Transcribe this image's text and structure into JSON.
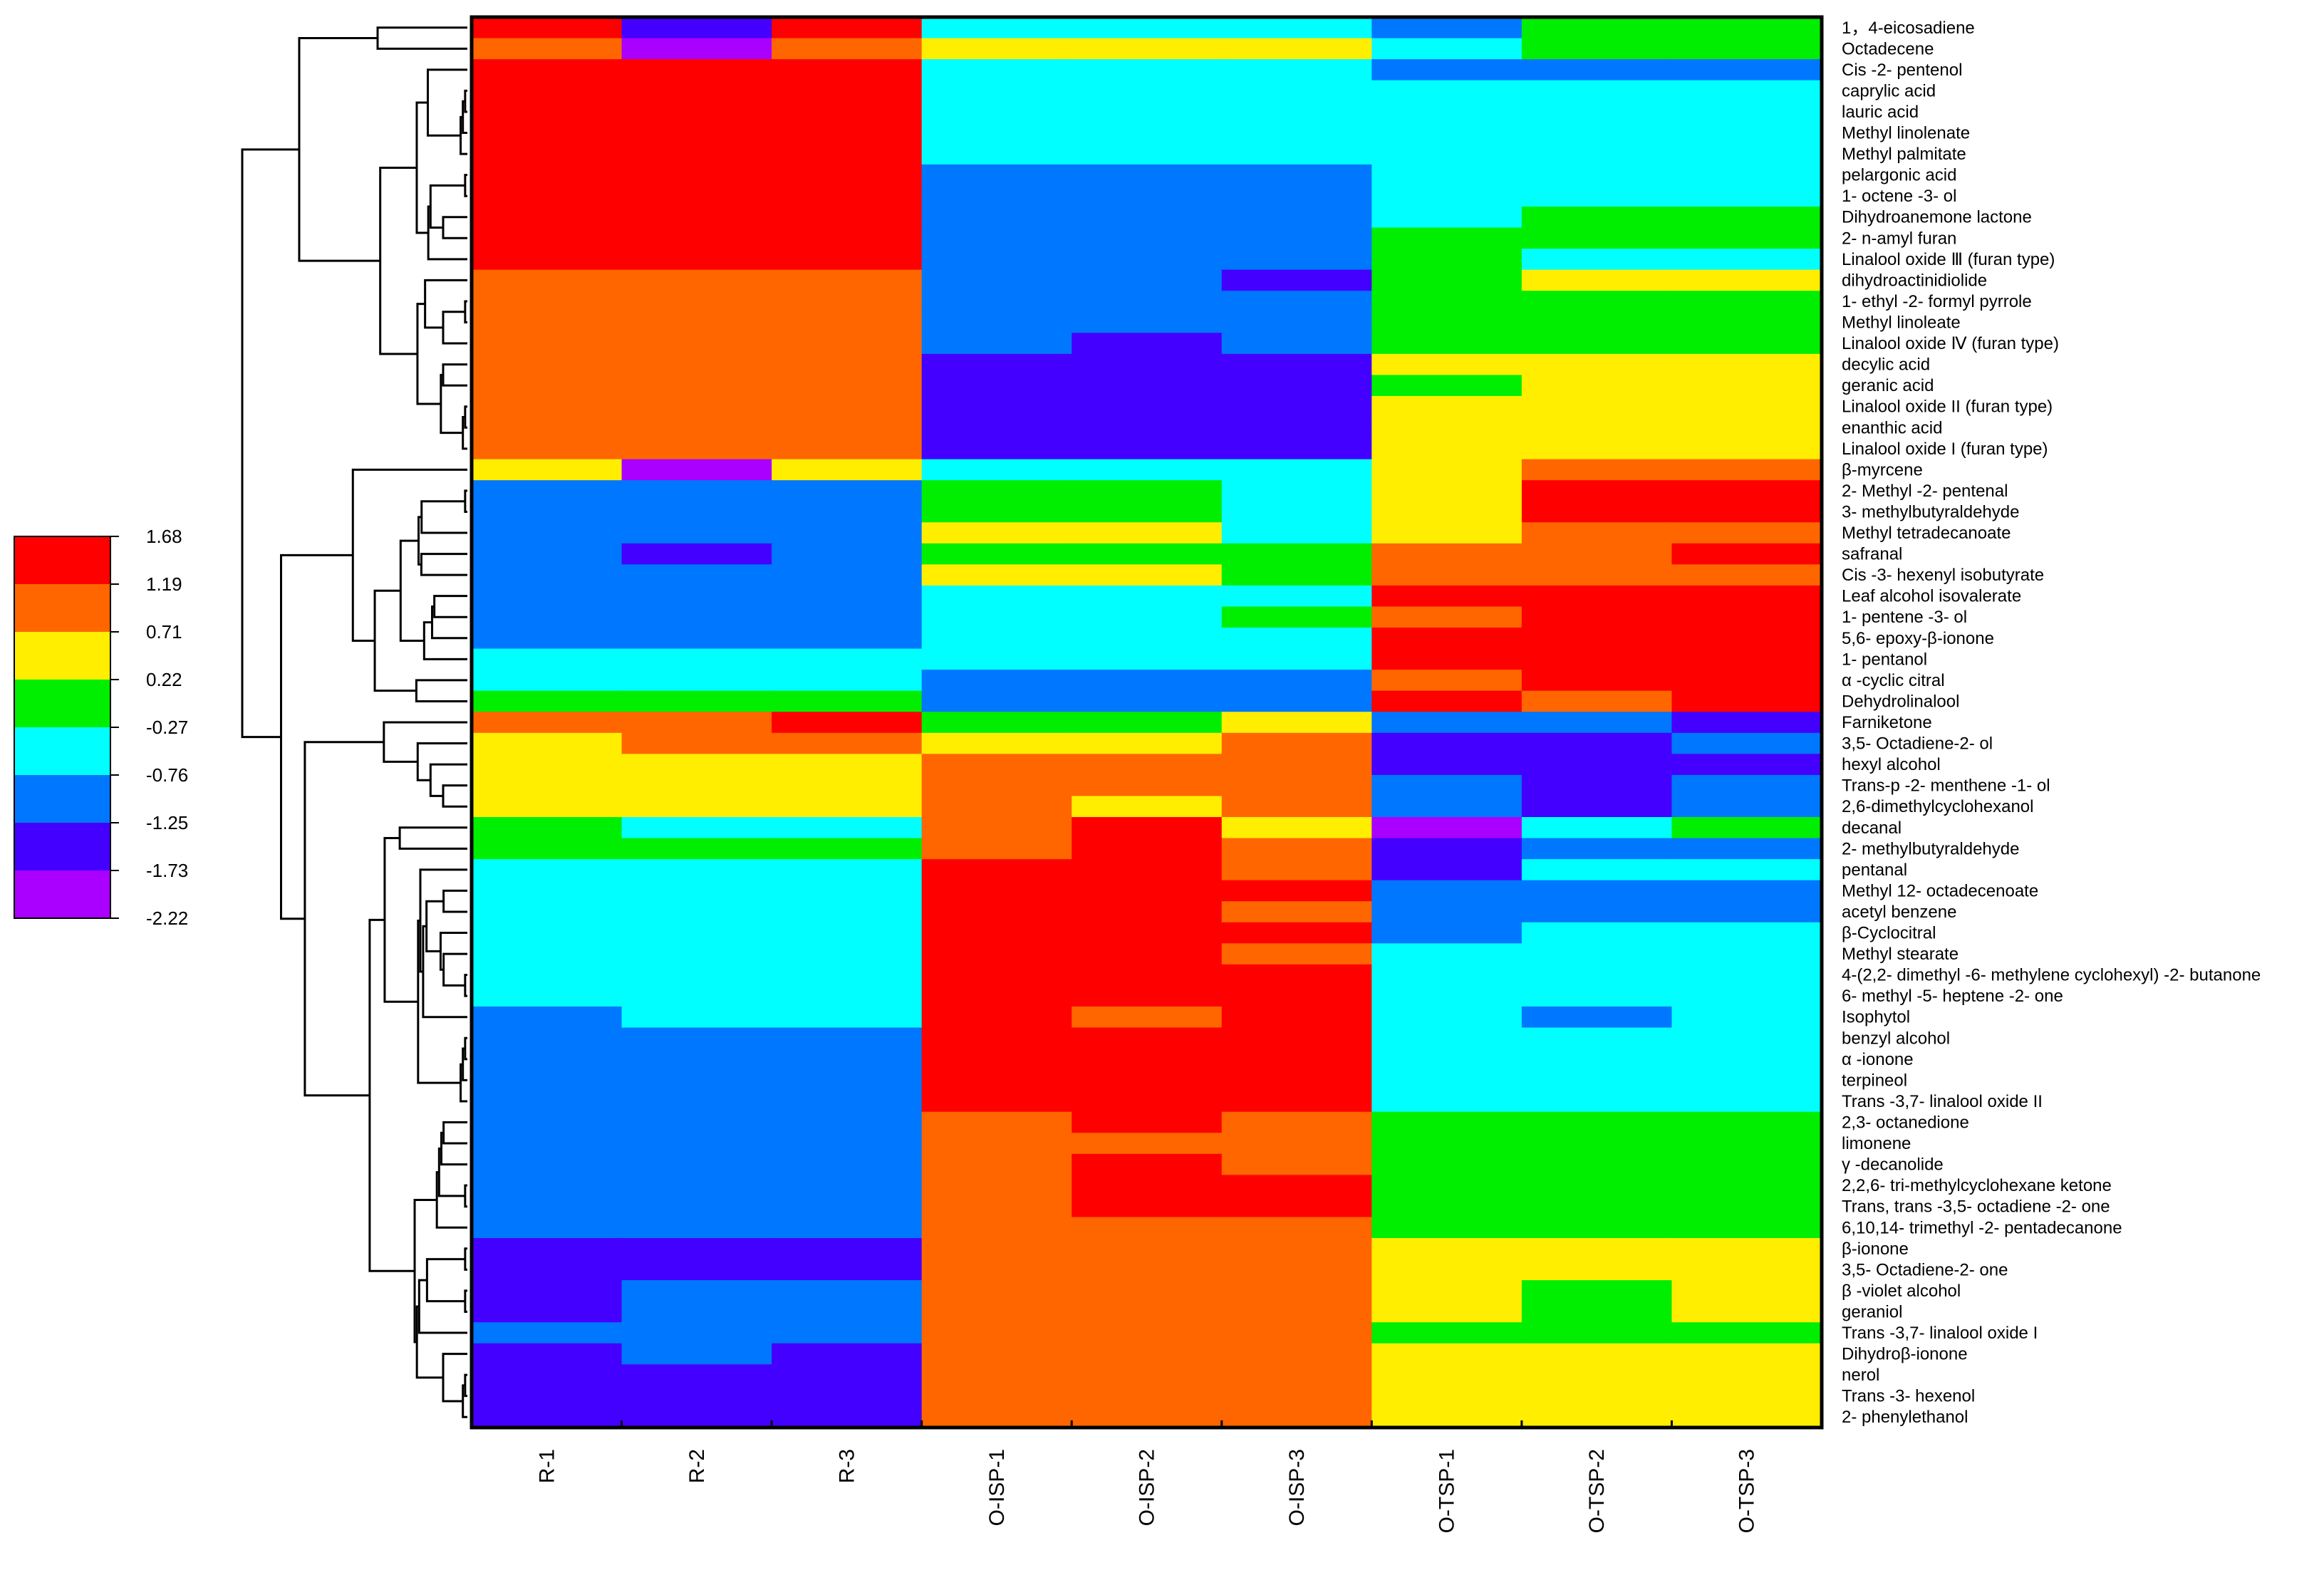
{
  "chart_data": {
    "type": "heatmap",
    "title": "",
    "xlabel": "",
    "ylabel": "",
    "columns": [
      "R-1",
      "R-2",
      "R-3",
      "O-ISP-1",
      "O-ISP-2",
      "O-ISP-3",
      "O-TSP-1",
      "O-TSP-2",
      "O-TSP-3"
    ],
    "rows": [
      "1，4-eicosadiene",
      "Octadecene",
      "Cis -2- pentenol",
      "caprylic acid",
      "lauric acid",
      "Methyl linolenate",
      "Methyl palmitate",
      "pelargonic acid",
      "1- octene -3- ol",
      "Dihydroanemone lactone",
      "2- n-amyl furan",
      "Linalool oxide Ⅲ (furan type)",
      "dihydroactinidiolide",
      "1- ethyl -2- formyl pyrrole",
      "Methyl linoleate",
      "Linalool oxide Ⅳ (furan type)",
      "decylic acid",
      "geranic acid",
      "Linalool oxide II (furan type)",
      "enanthic acid",
      "Linalool oxide I (furan type)",
      "β-myrcene",
      "2- Methyl -2- pentenal",
      "3- methylbutyraldehyde",
      "Methyl tetradecanoate",
      "safranal",
      "Cis -3- hexenyl isobutyrate",
      "Leaf alcohol isovalerate",
      "1- pentene -3- ol",
      "5,6- epoxy-β-ionone",
      "1- pentanol",
      "α -cyclic citral",
      "Dehydrolinalool",
      "Farniketone",
      "3,5- Octadiene-2- ol",
      "hexyl alcohol",
      "Trans-p -2- menthene -1- ol",
      "2,6-dimethylcyclohexanol",
      "decanal",
      "2- methylbutyraldehyde",
      "pentanal",
      "Methyl 12- octadecenoate",
      "acetyl benzene",
      "β-Cyclocitral",
      "Methyl stearate",
      "4-(2,2- dimethyl -6- methylene cyclohexyl) -2- butanone",
      "6- methyl -5- heptene -2- one",
      "Isophytol",
      "benzyl alcohol",
      "α -ionone",
      "terpineol",
      "Trans -3,7- linalool oxide II",
      "2,3- octanedione",
      "limonene",
      "γ -decanolide",
      "2,2,6- tri-methylcyclohexane ketone",
      "Trans, trans -3,5- octadiene -2- one",
      "6,10,14- trimethyl -2- pentadecanone",
      "β-ionone",
      "3,5- Octadiene-2- one",
      "β -violet alcohol",
      "geraniol",
      "Trans -3,7- linalool oxide I",
      "Dihydroβ-ionone",
      "nerol",
      "Trans -3- hexenol",
      "2- phenylethanol"
    ],
    "values": [
      [
        1.43,
        -1.49,
        1.43,
        -0.52,
        -0.52,
        -0.52,
        -1.0,
        -0.03,
        -0.03
      ],
      [
        0.95,
        -1.97,
        0.95,
        0.46,
        0.46,
        0.46,
        -0.52,
        -0.03,
        -0.03
      ],
      [
        1.43,
        1.43,
        1.43,
        -0.52,
        -0.52,
        -0.52,
        -1.0,
        -1.0,
        -1.0
      ],
      [
        1.43,
        1.43,
        1.43,
        -0.52,
        -0.52,
        -0.52,
        -0.52,
        -0.52,
        -0.52
      ],
      [
        1.43,
        1.43,
        1.43,
        -0.52,
        -0.52,
        -0.52,
        -0.52,
        -0.52,
        -0.52
      ],
      [
        1.43,
        1.43,
        1.43,
        -0.52,
        -0.52,
        -0.52,
        -0.52,
        -0.52,
        -0.52
      ],
      [
        1.43,
        1.43,
        1.43,
        -0.52,
        -0.52,
        -0.52,
        -0.52,
        -0.52,
        -0.52
      ],
      [
        1.43,
        1.43,
        1.43,
        -1.0,
        -1.0,
        -1.0,
        -0.52,
        -0.52,
        -0.52
      ],
      [
        1.43,
        1.43,
        1.43,
        -1.0,
        -1.0,
        -1.0,
        -0.52,
        -0.52,
        -0.52
      ],
      [
        1.43,
        1.43,
        1.43,
        -1.0,
        -1.0,
        -1.0,
        -0.52,
        -0.03,
        -0.03
      ],
      [
        1.43,
        1.43,
        1.43,
        -1.0,
        -1.0,
        -1.0,
        -0.03,
        -0.03,
        -0.03
      ],
      [
        1.43,
        1.43,
        1.43,
        -1.0,
        -1.0,
        -1.0,
        -0.03,
        -0.52,
        -0.52
      ],
      [
        0.95,
        0.95,
        0.95,
        -1.0,
        -1.0,
        -1.49,
        -0.03,
        0.46,
        0.46
      ],
      [
        0.95,
        0.95,
        0.95,
        -1.0,
        -1.0,
        -1.0,
        -0.03,
        -0.03,
        -0.03
      ],
      [
        0.95,
        0.95,
        0.95,
        -1.0,
        -1.0,
        -1.0,
        -0.03,
        -0.03,
        -0.03
      ],
      [
        0.95,
        0.95,
        0.95,
        -1.0,
        -1.49,
        -1.0,
        -0.03,
        -0.03,
        -0.03
      ],
      [
        0.95,
        0.95,
        0.95,
        -1.49,
        -1.49,
        -1.49,
        0.46,
        0.46,
        0.46
      ],
      [
        0.95,
        0.95,
        0.95,
        -1.49,
        -1.49,
        -1.49,
        -0.03,
        0.46,
        0.46
      ],
      [
        0.95,
        0.95,
        0.95,
        -1.49,
        -1.49,
        -1.49,
        0.46,
        0.46,
        0.46
      ],
      [
        0.95,
        0.95,
        0.95,
        -1.49,
        -1.49,
        -1.49,
        0.46,
        0.46,
        0.46
      ],
      [
        0.95,
        0.95,
        0.95,
        -1.49,
        -1.49,
        -1.49,
        0.46,
        0.46,
        0.46
      ],
      [
        0.46,
        -1.97,
        0.46,
        -0.52,
        -0.52,
        -0.52,
        0.46,
        0.95,
        0.95
      ],
      [
        -1.0,
        -1.0,
        -1.0,
        -0.03,
        -0.03,
        -0.52,
        0.46,
        1.43,
        1.43
      ],
      [
        -1.0,
        -1.0,
        -1.0,
        -0.03,
        -0.03,
        -0.52,
        0.46,
        1.43,
        1.43
      ],
      [
        -1.0,
        -1.0,
        -1.0,
        0.46,
        0.46,
        -0.52,
        0.46,
        0.95,
        0.95
      ],
      [
        -1.0,
        -1.49,
        -1.0,
        -0.03,
        -0.03,
        -0.03,
        0.95,
        0.95,
        1.43
      ],
      [
        -1.0,
        -1.0,
        -1.0,
        0.46,
        0.46,
        -0.03,
        0.95,
        0.95,
        0.95
      ],
      [
        -1.0,
        -1.0,
        -1.0,
        -0.52,
        -0.52,
        -0.52,
        1.43,
        1.43,
        1.43
      ],
      [
        -1.0,
        -1.0,
        -1.0,
        -0.52,
        -0.52,
        -0.03,
        0.95,
        1.43,
        1.43
      ],
      [
        -1.0,
        -1.0,
        -1.0,
        -0.52,
        -0.52,
        -0.52,
        1.43,
        1.43,
        1.43
      ],
      [
        -0.52,
        -0.52,
        -0.52,
        -0.52,
        -0.52,
        -0.52,
        1.43,
        1.43,
        1.43
      ],
      [
        -0.52,
        -0.52,
        -0.52,
        -1.0,
        -1.0,
        -1.0,
        0.95,
        1.43,
        1.43
      ],
      [
        -0.03,
        -0.03,
        -0.03,
        -1.0,
        -1.0,
        -1.0,
        1.43,
        0.95,
        1.43
      ],
      [
        0.95,
        0.95,
        1.43,
        -0.03,
        -0.03,
        0.46,
        -1.0,
        -1.0,
        -1.49
      ],
      [
        0.46,
        0.95,
        0.95,
        0.46,
        0.46,
        0.95,
        -1.49,
        -1.49,
        -1.0
      ],
      [
        0.46,
        0.46,
        0.46,
        0.95,
        0.95,
        0.95,
        -1.49,
        -1.49,
        -1.49
      ],
      [
        0.46,
        0.46,
        0.46,
        0.95,
        0.95,
        0.95,
        -1.0,
        -1.49,
        -1.0
      ],
      [
        0.46,
        0.46,
        0.46,
        0.95,
        0.46,
        0.95,
        -1.0,
        -1.49,
        -1.0
      ],
      [
        -0.03,
        -0.52,
        -0.52,
        0.95,
        1.43,
        0.46,
        -1.97,
        -0.52,
        -0.03
      ],
      [
        -0.03,
        -0.03,
        -0.03,
        0.95,
        1.43,
        0.95,
        -1.49,
        -1.0,
        -1.0
      ],
      [
        -0.52,
        -0.52,
        -0.52,
        1.43,
        1.43,
        0.95,
        -1.49,
        -0.52,
        -0.52
      ],
      [
        -0.52,
        -0.52,
        -0.52,
        1.43,
        1.43,
        1.43,
        -1.0,
        -1.0,
        -1.0
      ],
      [
        -0.52,
        -0.52,
        -0.52,
        1.43,
        1.43,
        0.95,
        -1.0,
        -1.0,
        -1.0
      ],
      [
        -0.52,
        -0.52,
        -0.52,
        1.43,
        1.43,
        1.43,
        -1.0,
        -0.52,
        -0.52
      ],
      [
        -0.52,
        -0.52,
        -0.52,
        1.43,
        1.43,
        0.95,
        -0.52,
        -0.52,
        -0.52
      ],
      [
        -0.52,
        -0.52,
        -0.52,
        1.43,
        1.43,
        1.43,
        -0.52,
        -0.52,
        -0.52
      ],
      [
        -0.52,
        -0.52,
        -0.52,
        1.43,
        1.43,
        1.43,
        -0.52,
        -0.52,
        -0.52
      ],
      [
        -1.0,
        -0.52,
        -0.52,
        1.43,
        0.95,
        1.43,
        -0.52,
        -1.0,
        -0.52
      ],
      [
        -1.0,
        -1.0,
        -1.0,
        1.43,
        1.43,
        1.43,
        -0.52,
        -0.52,
        -0.52
      ],
      [
        -1.0,
        -1.0,
        -1.0,
        1.43,
        1.43,
        1.43,
        -0.52,
        -0.52,
        -0.52
      ],
      [
        -1.0,
        -1.0,
        -1.0,
        1.43,
        1.43,
        1.43,
        -0.52,
        -0.52,
        -0.52
      ],
      [
        -1.0,
        -1.0,
        -1.0,
        1.43,
        1.43,
        1.43,
        -0.52,
        -0.52,
        -0.52
      ],
      [
        -1.0,
        -1.0,
        -1.0,
        0.95,
        1.43,
        0.95,
        -0.03,
        -0.03,
        -0.03
      ],
      [
        -1.0,
        -1.0,
        -1.0,
        0.95,
        0.95,
        0.95,
        -0.03,
        -0.03,
        -0.03
      ],
      [
        -1.0,
        -1.0,
        -1.0,
        0.95,
        1.43,
        0.95,
        -0.03,
        -0.03,
        -0.03
      ],
      [
        -1.0,
        -1.0,
        -1.0,
        0.95,
        1.43,
        1.43,
        -0.03,
        -0.03,
        -0.03
      ],
      [
        -1.0,
        -1.0,
        -1.0,
        0.95,
        1.43,
        1.43,
        -0.03,
        -0.03,
        -0.03
      ],
      [
        -1.0,
        -1.0,
        -1.0,
        0.95,
        0.95,
        0.95,
        -0.03,
        -0.03,
        -0.03
      ],
      [
        -1.49,
        -1.49,
        -1.49,
        0.95,
        0.95,
        0.95,
        0.46,
        0.46,
        0.46
      ],
      [
        -1.49,
        -1.49,
        -1.49,
        0.95,
        0.95,
        0.95,
        0.46,
        0.46,
        0.46
      ],
      [
        -1.49,
        -1.0,
        -1.0,
        0.95,
        0.95,
        0.95,
        0.46,
        -0.03,
        0.46
      ],
      [
        -1.49,
        -1.0,
        -1.0,
        0.95,
        0.95,
        0.95,
        0.46,
        -0.03,
        0.46
      ],
      [
        -1.0,
        -1.0,
        -1.0,
        0.95,
        0.95,
        0.95,
        -0.03,
        -0.03,
        -0.03
      ],
      [
        -1.49,
        -1.0,
        -1.49,
        0.95,
        0.95,
        0.95,
        0.46,
        0.46,
        0.46
      ],
      [
        -1.49,
        -1.49,
        -1.49,
        0.95,
        0.95,
        0.95,
        0.46,
        0.46,
        0.46
      ],
      [
        -1.49,
        -1.49,
        -1.49,
        0.95,
        0.95,
        0.95,
        0.46,
        0.46,
        0.46
      ],
      [
        -1.49,
        -1.49,
        -1.49,
        0.95,
        0.95,
        0.95,
        0.46,
        0.46,
        0.46
      ]
    ],
    "colorscale": {
      "ticks": [
        "1.68",
        "1.19",
        "0.71",
        "0.22",
        "-0.27",
        "-0.76",
        "-1.25",
        "-1.73",
        "-2.22"
      ],
      "bins": [
        {
          "min": 1.19,
          "max": 1.68,
          "color": "#ff0000"
        },
        {
          "min": 0.71,
          "max": 1.19,
          "color": "#ff6600"
        },
        {
          "min": 0.22,
          "max": 0.71,
          "color": "#ffee00"
        },
        {
          "min": -0.27,
          "max": 0.22,
          "color": "#00ee00"
        },
        {
          "min": -0.76,
          "max": -0.27,
          "color": "#00ffff"
        },
        {
          "min": -1.25,
          "max": -0.76,
          "color": "#0077ff"
        },
        {
          "min": -1.73,
          "max": -1.25,
          "color": "#4400ff"
        },
        {
          "min": -2.22,
          "max": -1.73,
          "color": "#aa00ff"
        }
      ]
    },
    "legend_position": "left",
    "dendrogram_side": "left"
  }
}
